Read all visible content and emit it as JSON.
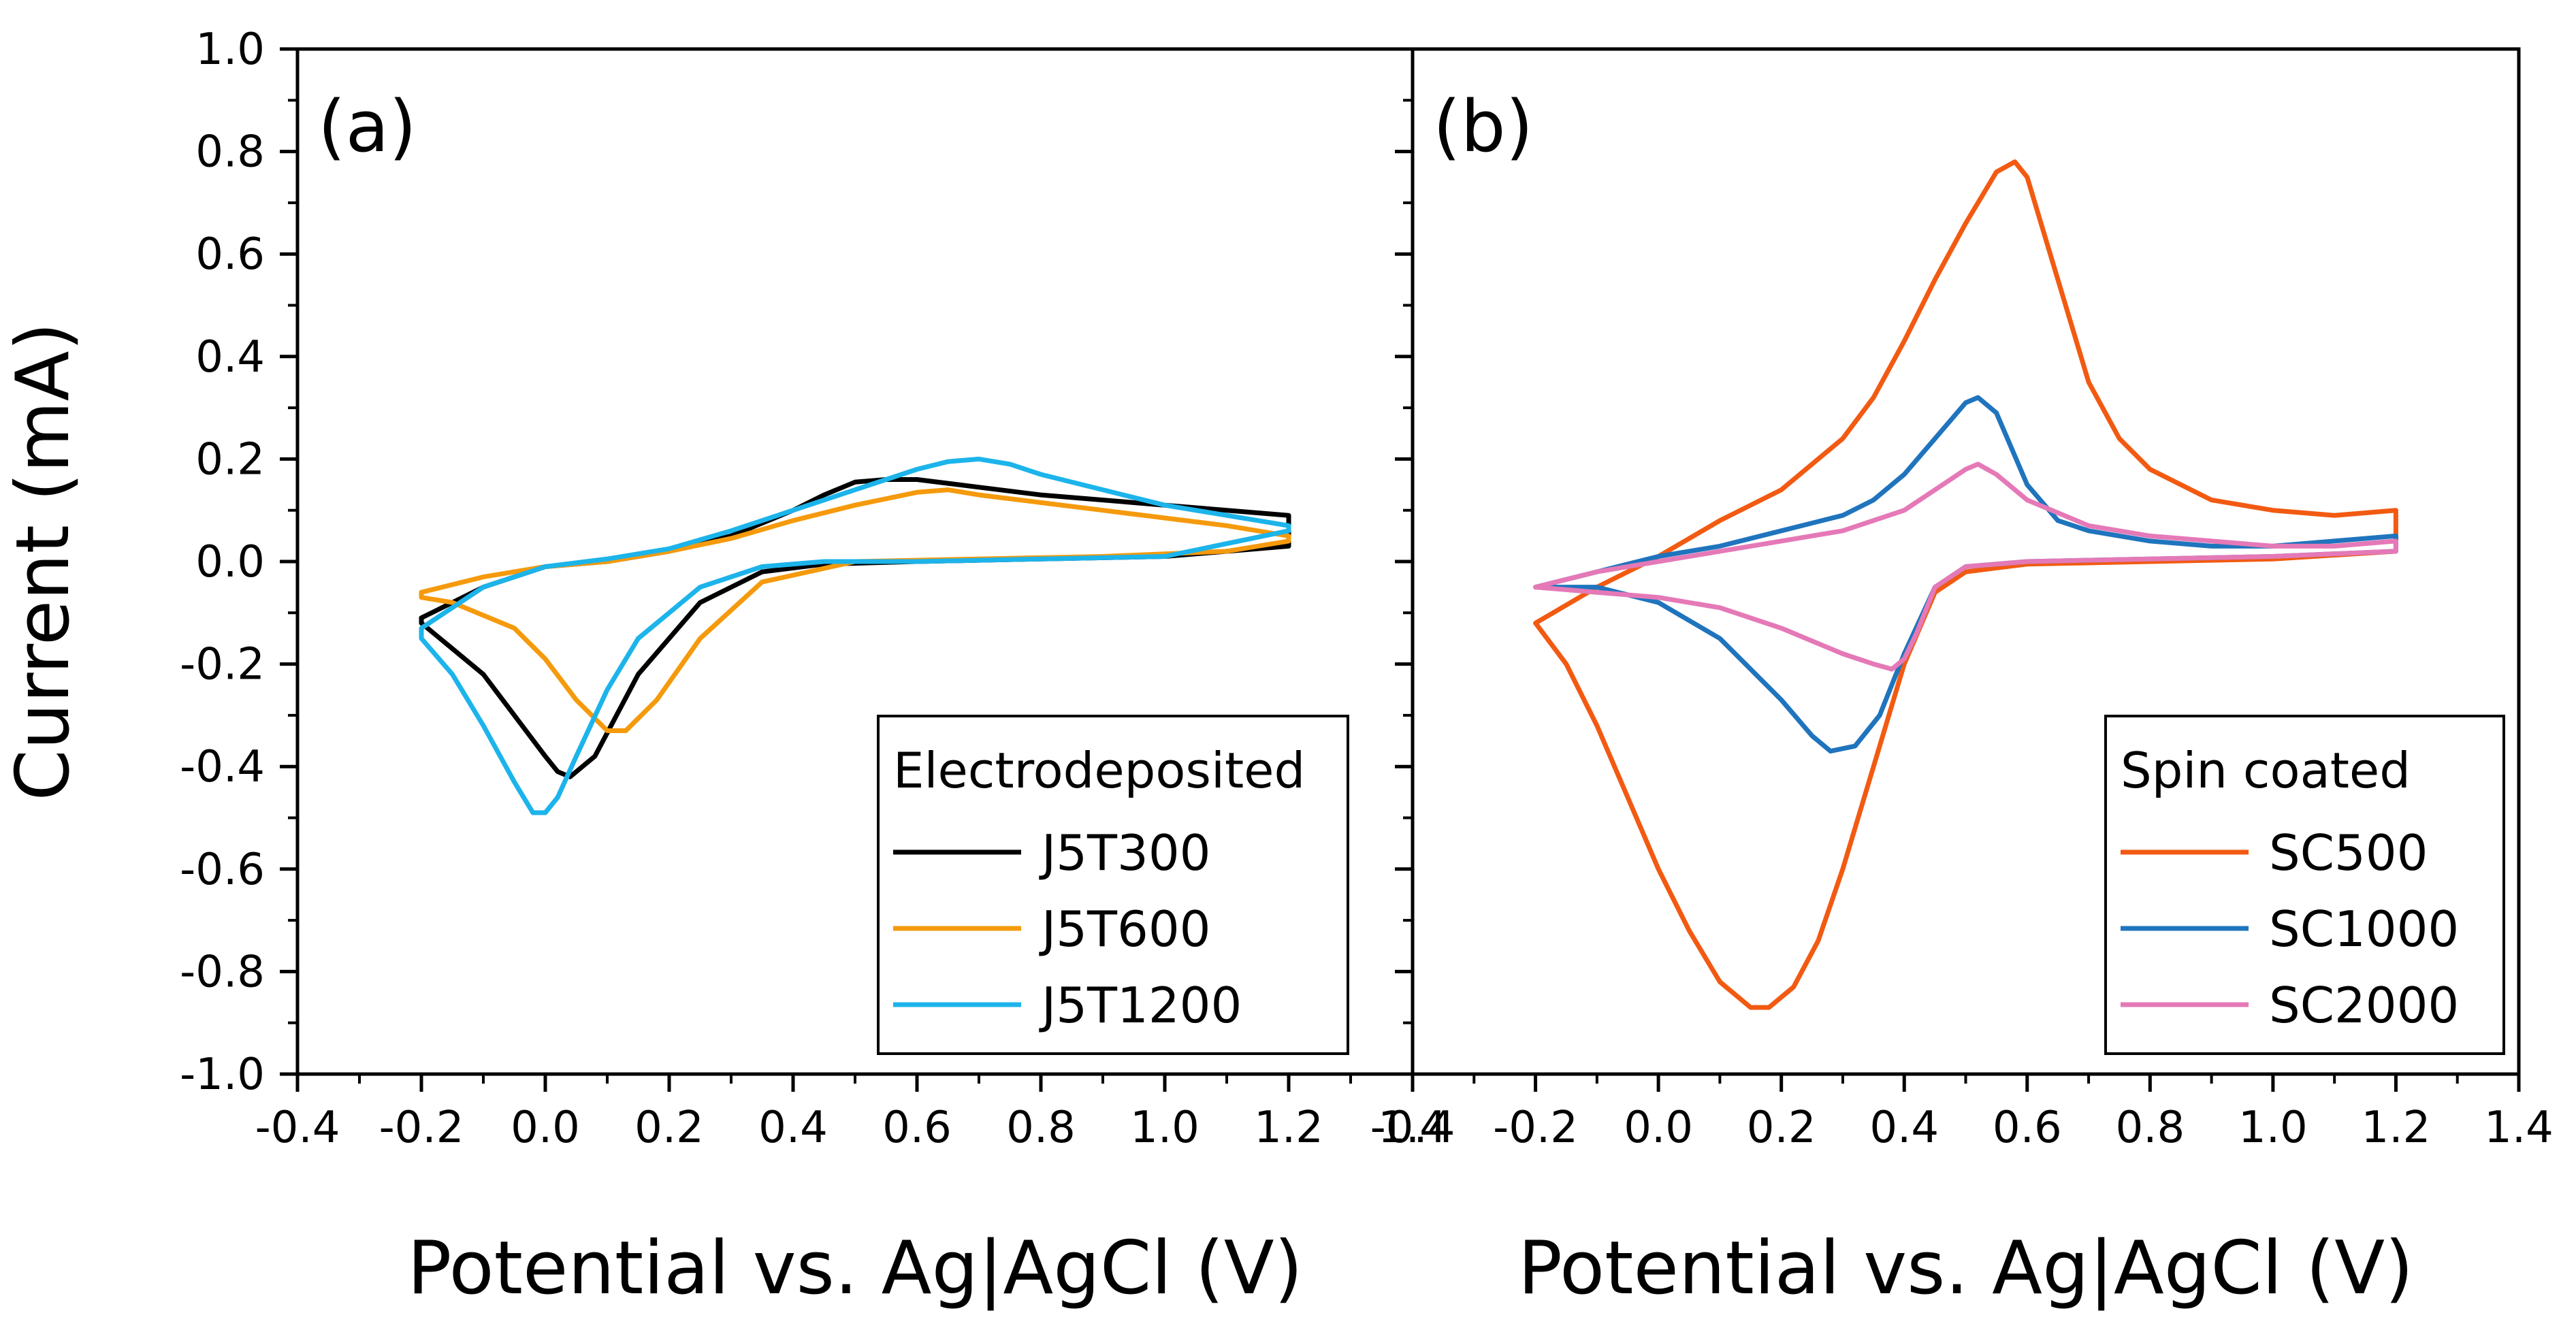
{
  "chart_data": [
    {
      "type": "line",
      "panel_label": "(a)",
      "xlabel": "Potential vs. Ag|AgCl (V)",
      "ylabel": "Current (mA)",
      "xlim": [
        -0.4,
        1.4
      ],
      "ylim": [
        -1.0,
        1.0
      ],
      "xticks": [
        "-0.4",
        "-0.2",
        "0.0",
        "0.2",
        "0.4",
        "0.6",
        "0.8",
        "1.0",
        "1.2",
        "1.4"
      ],
      "yticks": [
        "-1.0",
        "-0.8",
        "-0.6",
        "-0.4",
        "-0.2",
        "0.0",
        "0.2",
        "0.4",
        "0.6",
        "0.8",
        "1.0"
      ],
      "legend_title": "Electrodeposited",
      "legend_position": "bottom-right",
      "series": [
        {
          "name": "J5T300",
          "color": "#000000",
          "x": [
            -0.2,
            -0.15,
            -0.1,
            -0.05,
            0.0,
            0.02,
            0.04,
            0.08,
            0.15,
            0.25,
            0.35,
            0.45,
            0.6,
            0.8,
            1.0,
            1.2,
            1.2,
            1.1,
            1.0,
            0.9,
            0.8,
            0.7,
            0.6,
            0.55,
            0.5,
            0.45,
            0.4,
            0.3,
            0.2,
            0.1,
            0.0,
            -0.1,
            -0.2
          ],
          "y": [
            -0.12,
            -0.17,
            -0.22,
            -0.3,
            -0.38,
            -0.41,
            -0.42,
            -0.38,
            -0.22,
            -0.08,
            -0.02,
            -0.005,
            0.0,
            0.005,
            0.01,
            0.03,
            0.09,
            0.1,
            0.11,
            0.12,
            0.13,
            0.145,
            0.16,
            0.16,
            0.155,
            0.13,
            0.1,
            0.05,
            0.02,
            0.0,
            -0.01,
            -0.05,
            -0.11
          ]
        },
        {
          "name": "J5T600",
          "color": "#f59a0c",
          "x": [
            -0.2,
            -0.15,
            -0.05,
            0.0,
            0.05,
            0.1,
            0.13,
            0.18,
            0.25,
            0.35,
            0.5,
            0.7,
            0.9,
            1.1,
            1.2,
            1.2,
            1.1,
            1.0,
            0.9,
            0.8,
            0.7,
            0.65,
            0.6,
            0.5,
            0.4,
            0.3,
            0.2,
            0.1,
            0.0,
            -0.1,
            -0.2
          ],
          "y": [
            -0.07,
            -0.08,
            -0.13,
            -0.19,
            -0.27,
            -0.33,
            -0.33,
            -0.27,
            -0.15,
            -0.04,
            0.0,
            0.005,
            0.01,
            0.02,
            0.04,
            0.05,
            0.07,
            0.085,
            0.1,
            0.115,
            0.13,
            0.14,
            0.135,
            0.11,
            0.08,
            0.045,
            0.02,
            0.0,
            -0.01,
            -0.03,
            -0.06
          ]
        },
        {
          "name": "J5T1200",
          "color": "#1cb4ea",
          "x": [
            -0.2,
            -0.15,
            -0.1,
            -0.05,
            -0.02,
            0.0,
            0.02,
            0.05,
            0.1,
            0.15,
            0.25,
            0.35,
            0.45,
            0.6,
            0.8,
            1.0,
            1.2,
            1.2,
            1.1,
            1.0,
            0.9,
            0.8,
            0.75,
            0.7,
            0.65,
            0.6,
            0.5,
            0.4,
            0.3,
            0.2,
            0.1,
            0.0,
            -0.1,
            -0.2
          ],
          "y": [
            -0.15,
            -0.22,
            -0.32,
            -0.43,
            -0.49,
            -0.49,
            -0.46,
            -0.38,
            -0.25,
            -0.15,
            -0.05,
            -0.01,
            0.0,
            0.0,
            0.005,
            0.01,
            0.06,
            0.07,
            0.09,
            0.11,
            0.14,
            0.17,
            0.19,
            0.2,
            0.195,
            0.18,
            0.14,
            0.1,
            0.06,
            0.025,
            0.005,
            -0.01,
            -0.05,
            -0.13
          ]
        }
      ]
    },
    {
      "type": "line",
      "panel_label": "(b)",
      "xlabel": "Potential vs. Ag|AgCl (V)",
      "ylabel": "",
      "xlim": [
        -0.4,
        1.4
      ],
      "ylim": [
        -1.0,
        1.0
      ],
      "xticks": [
        "-0.4",
        "-0.2",
        "0.0",
        "0.2",
        "0.4",
        "0.6",
        "0.8",
        "1.0",
        "1.2",
        "1.4"
      ],
      "legend_title": "Spin coated",
      "legend_position": "bottom-right",
      "series": [
        {
          "name": "SC500",
          "color": "#f25a12",
          "x": [
            -0.2,
            -0.15,
            -0.1,
            -0.05,
            0.0,
            0.05,
            0.1,
            0.15,
            0.18,
            0.22,
            0.26,
            0.3,
            0.35,
            0.4,
            0.45,
            0.5,
            0.6,
            0.8,
            1.0,
            1.2,
            1.2,
            1.1,
            1.0,
            0.9,
            0.8,
            0.75,
            0.7,
            0.65,
            0.6,
            0.58,
            0.55,
            0.5,
            0.45,
            0.4,
            0.35,
            0.3,
            0.25,
            0.2,
            0.1,
            0.0,
            -0.1,
            -0.2
          ],
          "y": [
            -0.12,
            -0.2,
            -0.32,
            -0.46,
            -0.6,
            -0.72,
            -0.82,
            -0.87,
            -0.87,
            -0.83,
            -0.74,
            -0.6,
            -0.4,
            -0.2,
            -0.06,
            -0.02,
            -0.005,
            0.0,
            0.005,
            0.02,
            0.1,
            0.09,
            0.1,
            0.12,
            0.18,
            0.24,
            0.35,
            0.55,
            0.75,
            0.78,
            0.76,
            0.66,
            0.55,
            0.43,
            0.32,
            0.24,
            0.19,
            0.14,
            0.08,
            0.01,
            -0.05,
            -0.12
          ]
        },
        {
          "name": "SC1000",
          "color": "#1f74bd",
          "x": [
            -0.2,
            -0.1,
            0.0,
            0.1,
            0.2,
            0.25,
            0.28,
            0.32,
            0.36,
            0.4,
            0.45,
            0.5,
            0.6,
            0.8,
            1.0,
            1.2,
            1.2,
            1.1,
            1.0,
            0.9,
            0.8,
            0.7,
            0.65,
            0.6,
            0.55,
            0.52,
            0.5,
            0.45,
            0.4,
            0.35,
            0.3,
            0.2,
            0.1,
            0.0,
            -0.1,
            -0.2
          ],
          "y": [
            -0.05,
            -0.05,
            -0.08,
            -0.15,
            -0.27,
            -0.34,
            -0.37,
            -0.36,
            -0.3,
            -0.18,
            -0.05,
            -0.01,
            0.0,
            0.005,
            0.01,
            0.02,
            0.05,
            0.04,
            0.03,
            0.03,
            0.04,
            0.06,
            0.08,
            0.15,
            0.29,
            0.32,
            0.31,
            0.24,
            0.17,
            0.12,
            0.09,
            0.06,
            0.03,
            0.01,
            -0.02,
            -0.05
          ]
        },
        {
          "name": "SC2000",
          "color": "#e579b7",
          "x": [
            -0.2,
            -0.1,
            0.0,
            0.1,
            0.2,
            0.3,
            0.35,
            0.38,
            0.4,
            0.42,
            0.45,
            0.5,
            0.6,
            0.8,
            1.0,
            1.2,
            1.2,
            1.1,
            1.0,
            0.9,
            0.8,
            0.7,
            0.6,
            0.55,
            0.52,
            0.5,
            0.45,
            0.4,
            0.3,
            0.2,
            0.1,
            0.0,
            -0.1,
            -0.2
          ],
          "y": [
            -0.05,
            -0.06,
            -0.07,
            -0.09,
            -0.13,
            -0.18,
            -0.2,
            -0.21,
            -0.19,
            -0.14,
            -0.05,
            -0.01,
            0.0,
            0.005,
            0.01,
            0.02,
            0.04,
            0.03,
            0.03,
            0.04,
            0.05,
            0.07,
            0.12,
            0.17,
            0.19,
            0.18,
            0.14,
            0.1,
            0.06,
            0.04,
            0.02,
            0.0,
            -0.02,
            -0.05
          ]
        }
      ]
    }
  ]
}
